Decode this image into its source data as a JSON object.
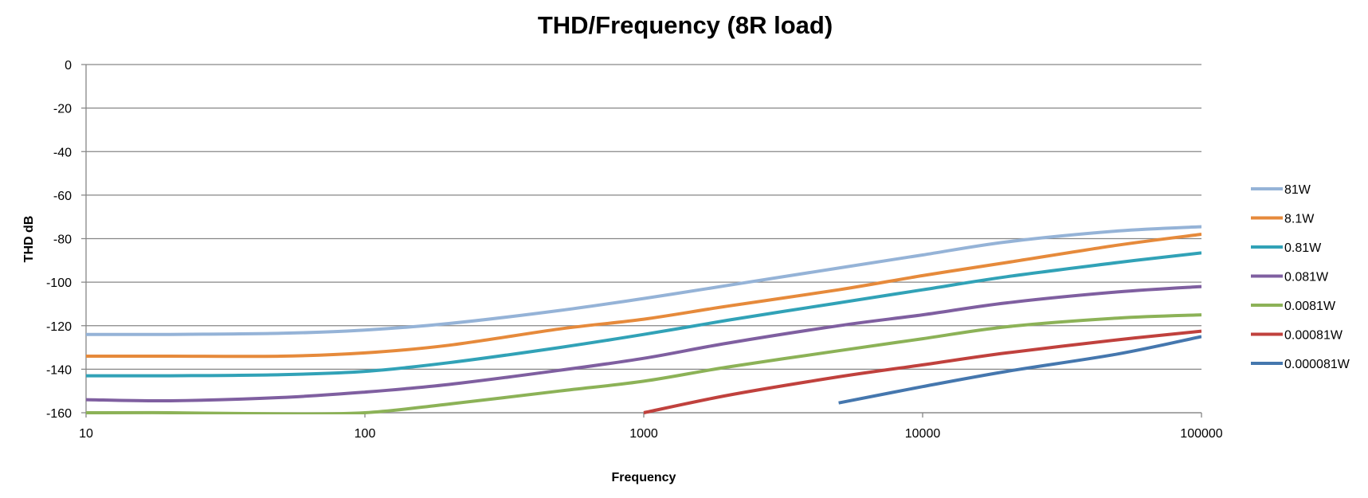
{
  "chart_data": {
    "type": "line",
    "title": "THD/Frequency (8R load)",
    "xlabel": "Frequency",
    "ylabel": "THD dB",
    "x_scale": "log",
    "xlim": [
      10,
      100000
    ],
    "ylim": [
      -160,
      0
    ],
    "x_ticks": [
      "10",
      "100",
      "1000",
      "10000",
      "100000"
    ],
    "y_ticks": [
      "0",
      "-20",
      "-40",
      "-60",
      "-80",
      "-100",
      "-120",
      "-140",
      "-160"
    ],
    "grid": "horizontal",
    "legend_position": "right",
    "x": [
      10,
      20,
      50,
      100,
      200,
      500,
      1000,
      2000,
      5000,
      10000,
      20000,
      50000,
      100000
    ],
    "series": [
      {
        "name": "81W",
        "color": "#95b3d7",
        "values": [
          -124,
          -124,
          -123.5,
          -122,
          -119,
          -113,
          -107.5,
          -101.5,
          -93.5,
          -87.5,
          -81.5,
          -76.5,
          -74.5
        ]
      },
      {
        "name": "8.1W",
        "color": "#e68a3b",
        "values": [
          -134,
          -134,
          -134,
          -132.5,
          -129,
          -121.5,
          -117,
          -111,
          -103.5,
          -97,
          -91,
          -83,
          -78
        ]
      },
      {
        "name": "0.81W",
        "color": "#31a2b7",
        "values": [
          -143,
          -143,
          -142.5,
          -141,
          -137,
          -130,
          -124,
          -117.5,
          -109.5,
          -103.5,
          -97.5,
          -91,
          -86.5
        ]
      },
      {
        "name": "0.081W",
        "color": "#7f5fa0",
        "values": [
          -154,
          -154.5,
          -153,
          -150.5,
          -147,
          -140.5,
          -135,
          -128,
          -120,
          -115,
          -109.5,
          -104.5,
          -102
        ]
      },
      {
        "name": "0.0081W",
        "color": "#8cb257",
        "values": [
          -160,
          -160,
          -160.5,
          -160,
          -156,
          -150,
          -145.5,
          -139,
          -131.5,
          -126,
          -120.5,
          -116.5,
          -115
        ]
      },
      {
        "name": "0.00081W",
        "color": "#c0413d",
        "values": [
          null,
          null,
          null,
          null,
          null,
          null,
          -160,
          -152,
          -143.5,
          -138,
          -132.5,
          -126.5,
          -122.5
        ]
      },
      {
        "name": "0.000081W",
        "color": "#4577ae",
        "values": [
          null,
          null,
          null,
          null,
          null,
          null,
          null,
          null,
          -155.5,
          -148,
          -141,
          -133,
          -125
        ]
      }
    ]
  }
}
